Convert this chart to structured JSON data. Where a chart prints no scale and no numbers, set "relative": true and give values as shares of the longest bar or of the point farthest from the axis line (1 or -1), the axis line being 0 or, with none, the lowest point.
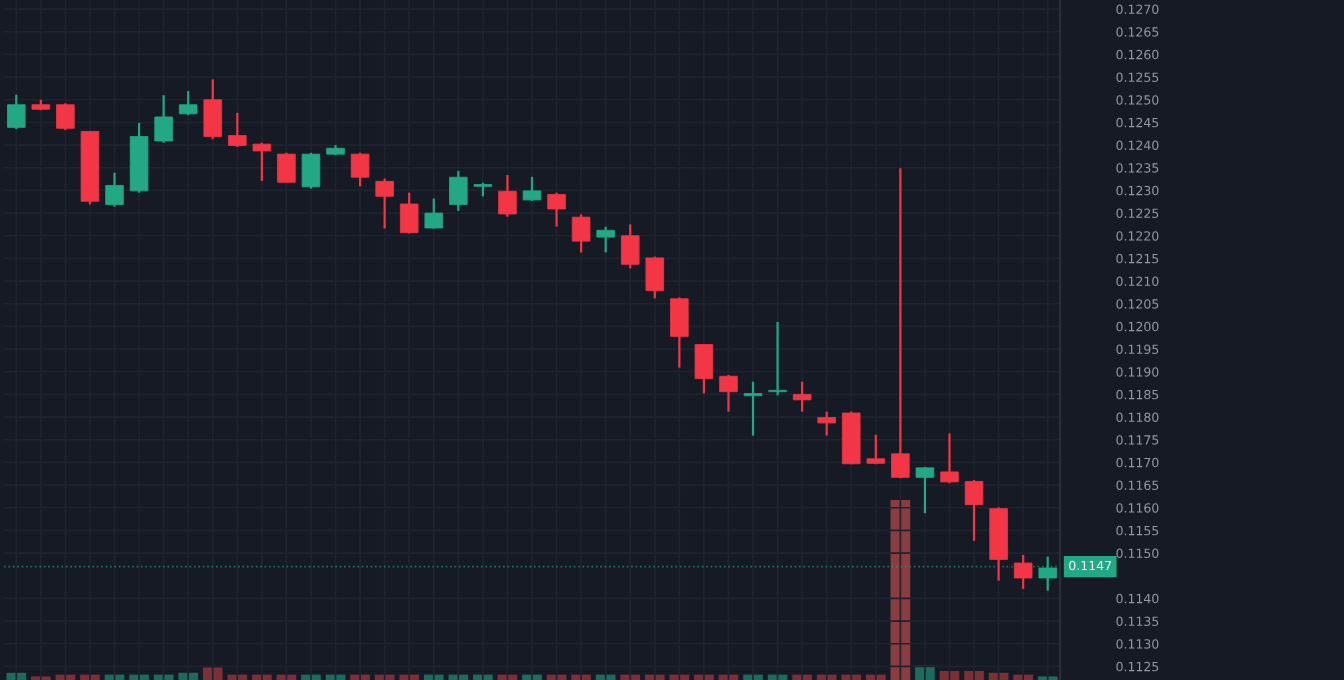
{
  "chart_data": [
    {
      "type": "candlestick",
      "categories": [
        null,
        null,
        null,
        null,
        null,
        null,
        null,
        null,
        null,
        null,
        null,
        null,
        null,
        null,
        null,
        null,
        null,
        null,
        null,
        null,
        null,
        null,
        null,
        null,
        null,
        null,
        null,
        null,
        null,
        null,
        null,
        null,
        null,
        null,
        null,
        null,
        null,
        null,
        null,
        null,
        null,
        null,
        null
      ],
      "colors": [
        "#22a884",
        "#f23645",
        "#f23645",
        "#f23645",
        "#22a884",
        "#22a884",
        "#22a884",
        "#22a884",
        "#f23645",
        "#f23645",
        "#f23645",
        "#f23645",
        "#22a884",
        "#22a884",
        "#f23645",
        "#f23645",
        "#f23645",
        "#22a884",
        "#22a884",
        "#22a884",
        "#f23645",
        "#22a884",
        "#f23645",
        "#f23645",
        "#22a884",
        "#f23645",
        "#f23645",
        "#f23645",
        "#f23645",
        "#f23645",
        "#22a884",
        "#22a884",
        "#f23645",
        "#f23645",
        "#f23645",
        "#f23645",
        "#f23645",
        "#22a884",
        "#f23645",
        "#f23645",
        "#f23645",
        "#f23645",
        "#22a884"
      ],
      "ohlc": [
        [
          0.12439,
          0.12511,
          0.12435,
          0.12489
        ],
        [
          0.12489,
          0.125,
          0.12477,
          0.12479
        ],
        [
          0.12489,
          0.12492,
          0.12433,
          0.12437
        ],
        [
          0.1243,
          0.12431,
          0.12269,
          0.12276
        ],
        [
          0.12269,
          0.12339,
          0.12264,
          0.12311
        ],
        [
          0.12299,
          0.12449,
          0.12295,
          0.12419
        ],
        [
          0.12409,
          0.1251,
          0.12405,
          0.12462
        ],
        [
          0.12469,
          0.12519,
          0.12466,
          0.12489
        ],
        [
          0.125,
          0.12545,
          0.12413,
          0.12419
        ],
        [
          0.12421,
          0.12471,
          0.12396,
          0.12399
        ],
        [
          0.12402,
          0.12405,
          0.12321,
          0.12387
        ],
        [
          0.1238,
          0.12383,
          0.12317,
          0.12318
        ],
        [
          0.12308,
          0.12383,
          0.12304,
          0.1238
        ],
        [
          0.1238,
          0.124,
          0.12378,
          0.12393
        ],
        [
          0.1238,
          0.12383,
          0.12309,
          0.12329
        ],
        [
          0.1232,
          0.12326,
          0.12216,
          0.12287
        ],
        [
          0.1227,
          0.12295,
          0.12205,
          0.12207
        ],
        [
          0.12217,
          0.12282,
          0.12216,
          0.1225
        ],
        [
          0.12269,
          0.12343,
          0.12255,
          0.12329
        ],
        [
          0.12309,
          0.12317,
          0.12287,
          0.12313
        ],
        [
          0.12298,
          0.12334,
          0.12242,
          0.12248
        ],
        [
          0.12279,
          0.1233,
          0.12277,
          0.12299
        ],
        [
          0.12291,
          0.12295,
          0.1222,
          0.12259
        ],
        [
          0.12241,
          0.12247,
          0.12163,
          0.12188
        ],
        [
          0.12197,
          0.1222,
          0.12163,
          0.12212
        ],
        [
          0.122,
          0.12225,
          0.12128,
          0.12137
        ],
        [
          0.12151,
          0.12154,
          0.12062,
          0.12079
        ],
        [
          0.12061,
          0.12064,
          0.11909,
          0.11978
        ],
        [
          0.1196,
          0.11961,
          0.11852,
          0.11885
        ],
        [
          0.1189,
          0.11893,
          0.11812,
          0.11856
        ],
        [
          0.11847,
          0.11878,
          0.11759,
          0.11852
        ],
        [
          0.11856,
          0.1201,
          0.11848,
          0.11859
        ],
        [
          0.1185,
          0.11878,
          0.11812,
          0.11838
        ],
        [
          0.11799,
          0.11812,
          0.11759,
          0.11787
        ],
        [
          0.11809,
          0.11812,
          0.11696,
          0.11697
        ],
        [
          0.11708,
          0.11761,
          0.11696,
          0.11698
        ],
        [
          0.11719,
          0.12349,
          0.11665,
          0.11667
        ],
        [
          0.11667,
          0.1169,
          0.11588,
          0.11688
        ],
        [
          0.11679,
          0.11764,
          0.11654,
          0.11657
        ],
        [
          0.11658,
          0.11661,
          0.11527,
          0.11607
        ],
        [
          0.11598,
          0.11601,
          0.11439,
          0.11486
        ],
        [
          0.11478,
          0.11496,
          0.11421,
          0.11445
        ],
        [
          0.11445,
          0.11492,
          0.11417,
          0.11467
        ]
      ],
      "ylim": [
        0.1122,
        0.1272
      ],
      "yticks": [
        {
          "value": 0.1125,
          "label": "0.1125"
        },
        {
          "value": 0.113,
          "label": "0.1130"
        },
        {
          "value": 0.1135,
          "label": "0.1135"
        },
        {
          "value": 0.114,
          "label": "0.1140"
        },
        {
          "value": 0.115,
          "label": "0.1150"
        },
        {
          "value": 0.1155,
          "label": "0.1155"
        },
        {
          "value": 0.116,
          "label": "0.1160"
        },
        {
          "value": 0.1165,
          "label": "0.1165"
        },
        {
          "value": 0.117,
          "label": "0.1170"
        },
        {
          "value": 0.1175,
          "label": "0.1175"
        },
        {
          "value": 0.118,
          "label": "0.1180"
        },
        {
          "value": 0.1185,
          "label": "0.1185"
        },
        {
          "value": 0.119,
          "label": "0.1190"
        },
        {
          "value": 0.1195,
          "label": "0.1195"
        },
        {
          "value": 0.12,
          "label": "0.1200"
        },
        {
          "value": 0.1205,
          "label": "0.1205"
        },
        {
          "value": 0.121,
          "label": "0.1210"
        },
        {
          "value": 0.1215,
          "label": "0.1215"
        },
        {
          "value": 0.122,
          "label": "0.1220"
        },
        {
          "value": 0.1225,
          "label": "0.1225"
        },
        {
          "value": 0.123,
          "label": "0.1230"
        },
        {
          "value": 0.1235,
          "label": "0.1235"
        },
        {
          "value": 0.124,
          "label": "0.1240"
        },
        {
          "value": 0.1245,
          "label": "0.1245"
        },
        {
          "value": 0.125,
          "label": "0.1250"
        },
        {
          "value": 0.1255,
          "label": "0.1255"
        },
        {
          "value": 0.126,
          "label": "0.1260"
        },
        {
          "value": 0.1265,
          "label": "0.1265"
        },
        {
          "value": 0.127,
          "label": "0.1270"
        }
      ],
      "ref_lines": [
        {
          "axis": "y",
          "value": 0.1147,
          "label": "0.1147",
          "color": "#22a884",
          "line_style": "dotted"
        }
      ],
      "grid": true,
      "tick_labels": "y"
    },
    {
      "type": "bar",
      "relative": true,
      "categories": [
        null,
        null,
        null,
        null,
        null,
        null,
        null,
        null,
        null,
        null,
        null,
        null,
        null,
        null,
        null,
        null,
        null,
        null,
        null,
        null,
        null,
        null,
        null,
        null,
        null,
        null,
        null,
        null,
        null,
        null,
        null,
        null,
        null,
        null,
        null,
        null,
        null,
        null,
        null,
        null,
        null,
        null,
        null
      ],
      "values": [
        0.04,
        0.02,
        0.03,
        0.03,
        0.03,
        0.03,
        0.03,
        0.04,
        0.07,
        0.03,
        0.03,
        0.03,
        0.03,
        0.03,
        0.03,
        0.03,
        0.03,
        0.03,
        0.03,
        0.03,
        0.03,
        0.03,
        0.03,
        0.03,
        0.03,
        0.03,
        0.03,
        0.03,
        0.03,
        0.03,
        0.03,
        0.03,
        0.03,
        0.03,
        0.03,
        0.03,
        1,
        0.08,
        0.05,
        0.05,
        0.04,
        0.03,
        0.02
      ],
      "colors": [
        "#1d6b5c",
        "#7a3036",
        "#7a3036",
        "#7a3036",
        "#1d6b5c",
        "#1d6b5c",
        "#1d6b5c",
        "#1d6b5c",
        "#7a3036",
        "#7a3036",
        "#7a3036",
        "#7a3036",
        "#1d6b5c",
        "#1d6b5c",
        "#7a3036",
        "#7a3036",
        "#7a3036",
        "#1d6b5c",
        "#1d6b5c",
        "#1d6b5c",
        "#7a3036",
        "#1d6b5c",
        "#7a3036",
        "#7a3036",
        "#1d6b5c",
        "#7a3036",
        "#7a3036",
        "#7a3036",
        "#7a3036",
        "#7a3036",
        "#1d6b5c",
        "#1d6b5c",
        "#7a3036",
        "#7a3036",
        "#7a3036",
        "#7a3036",
        "#8a3c3e",
        "#1d6b5c",
        "#7a3036",
        "#7a3036",
        "#7a3036",
        "#7a3036",
        "#1d6b5c"
      ],
      "tick_labels": false
    }
  ]
}
